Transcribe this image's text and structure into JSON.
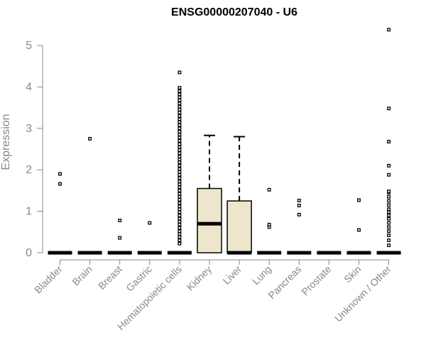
{
  "chart_data": {
    "type": "box",
    "title": "ENSG00000207040 - U6",
    "ylabel": "Expression",
    "xlabel": "",
    "ylim": [
      0,
      5.4
    ],
    "yticks": [
      0,
      1,
      2,
      3,
      4,
      5
    ],
    "grid": false,
    "colors": {
      "box_fill": "#ede6cc",
      "outline": "#000000",
      "axis": "#888888"
    },
    "categories": [
      "Bladder",
      "Brain",
      "Breast",
      "Gastric",
      "Hematopoietic cells",
      "Kidney",
      "Liver",
      "Lung",
      "Pancreas",
      "Prostate",
      "Skin",
      "Unknown / Other"
    ],
    "boxes": [
      {
        "category": "Bladder",
        "q1": 0,
        "median": 0,
        "q3": 0,
        "whisker_low": 0,
        "whisker_high": 0,
        "outliers": [
          1.66,
          1.9
        ]
      },
      {
        "category": "Brain",
        "q1": 0,
        "median": 0,
        "q3": 0,
        "whisker_low": 0,
        "whisker_high": 0,
        "outliers": [
          2.75
        ]
      },
      {
        "category": "Breast",
        "q1": 0,
        "median": 0,
        "q3": 0,
        "whisker_low": 0,
        "whisker_high": 0,
        "outliers": [
          0.36,
          0.78
        ]
      },
      {
        "category": "Gastric",
        "q1": 0,
        "median": 0,
        "q3": 0,
        "whisker_low": 0,
        "whisker_high": 0,
        "outliers": [
          0.72
        ]
      },
      {
        "category": "Hematopoietic cells",
        "q1": 0,
        "median": 0,
        "q3": 0,
        "whisker_low": 0,
        "whisker_high": 0,
        "outliers": [
          0.22,
          0.3,
          0.38,
          0.45,
          0.52,
          0.6,
          0.68,
          0.75,
          0.82,
          0.9,
          0.98,
          1.05,
          1.12,
          1.2,
          1.28,
          1.35,
          1.42,
          1.5,
          1.58,
          1.65,
          1.72,
          1.8,
          1.88,
          1.95,
          2.02,
          2.1,
          2.18,
          2.25,
          2.32,
          2.4,
          2.48,
          2.55,
          2.62,
          2.7,
          2.78,
          2.85,
          2.92,
          3.0,
          3.08,
          3.15,
          3.22,
          3.3,
          3.38,
          3.45,
          3.52,
          3.6,
          3.68,
          3.75,
          3.82,
          3.9,
          3.98,
          4.35
        ]
      },
      {
        "category": "Kidney",
        "q1": 0,
        "median": 0.7,
        "q3": 1.55,
        "whisker_low": 0,
        "whisker_high": 2.83,
        "outliers": []
      },
      {
        "category": "Liver",
        "q1": 0,
        "median": 0,
        "q3": 1.25,
        "whisker_low": 0,
        "whisker_high": 2.8,
        "outliers": []
      },
      {
        "category": "Lung",
        "q1": 0,
        "median": 0,
        "q3": 0,
        "whisker_low": 0,
        "whisker_high": 0,
        "outliers": [
          0.62,
          0.68,
          1.52
        ]
      },
      {
        "category": "Pancreas",
        "q1": 0,
        "median": 0,
        "q3": 0,
        "whisker_low": 0,
        "whisker_high": 0,
        "outliers": [
          0.92,
          1.14,
          1.26
        ]
      },
      {
        "category": "Prostate",
        "q1": 0,
        "median": 0,
        "q3": 0,
        "whisker_low": 0,
        "whisker_high": 0,
        "outliers": []
      },
      {
        "category": "Skin",
        "q1": 0,
        "median": 0,
        "q3": 0,
        "whisker_low": 0,
        "whisker_high": 0,
        "outliers": [
          0.55,
          1.27
        ]
      },
      {
        "category": "Unknown / Other",
        "q1": 0,
        "median": 0,
        "q3": 0,
        "whisker_low": 0,
        "whisker_high": 0,
        "outliers": [
          0.18,
          0.3,
          0.42,
          0.52,
          0.62,
          0.72,
          0.82,
          0.9,
          0.98,
          1.05,
          1.15,
          1.25,
          1.35,
          1.45,
          1.48,
          1.88,
          2.1,
          2.68,
          3.48,
          5.38
        ]
      }
    ]
  }
}
